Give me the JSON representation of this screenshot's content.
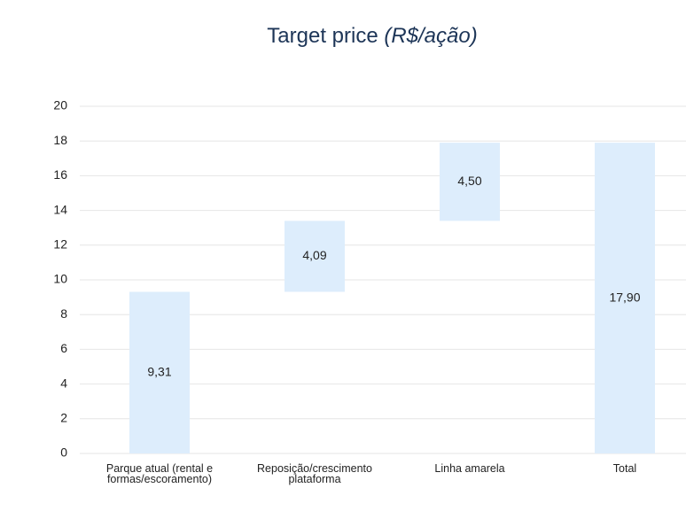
{
  "chart_data": {
    "type": "waterfall",
    "title": "Target price",
    "title_unit": "(R$/ação)",
    "categories": [
      "Parque atual (rental e formas/escoramento)",
      "Reposição/crescimento plataforma",
      "Linha amarela",
      "Total"
    ],
    "values": [
      9.31,
      4.09,
      4.5,
      17.9
    ],
    "value_labels": [
      "9,31",
      "4,09",
      "4,50",
      "17,90"
    ],
    "is_total": [
      false,
      false,
      false,
      true
    ],
    "color": "#ddedfc",
    "ylim": [
      0,
      20
    ],
    "yticks": [
      0,
      2,
      4,
      6,
      8,
      10,
      12,
      14,
      16,
      18,
      20
    ],
    "grid": true
  }
}
